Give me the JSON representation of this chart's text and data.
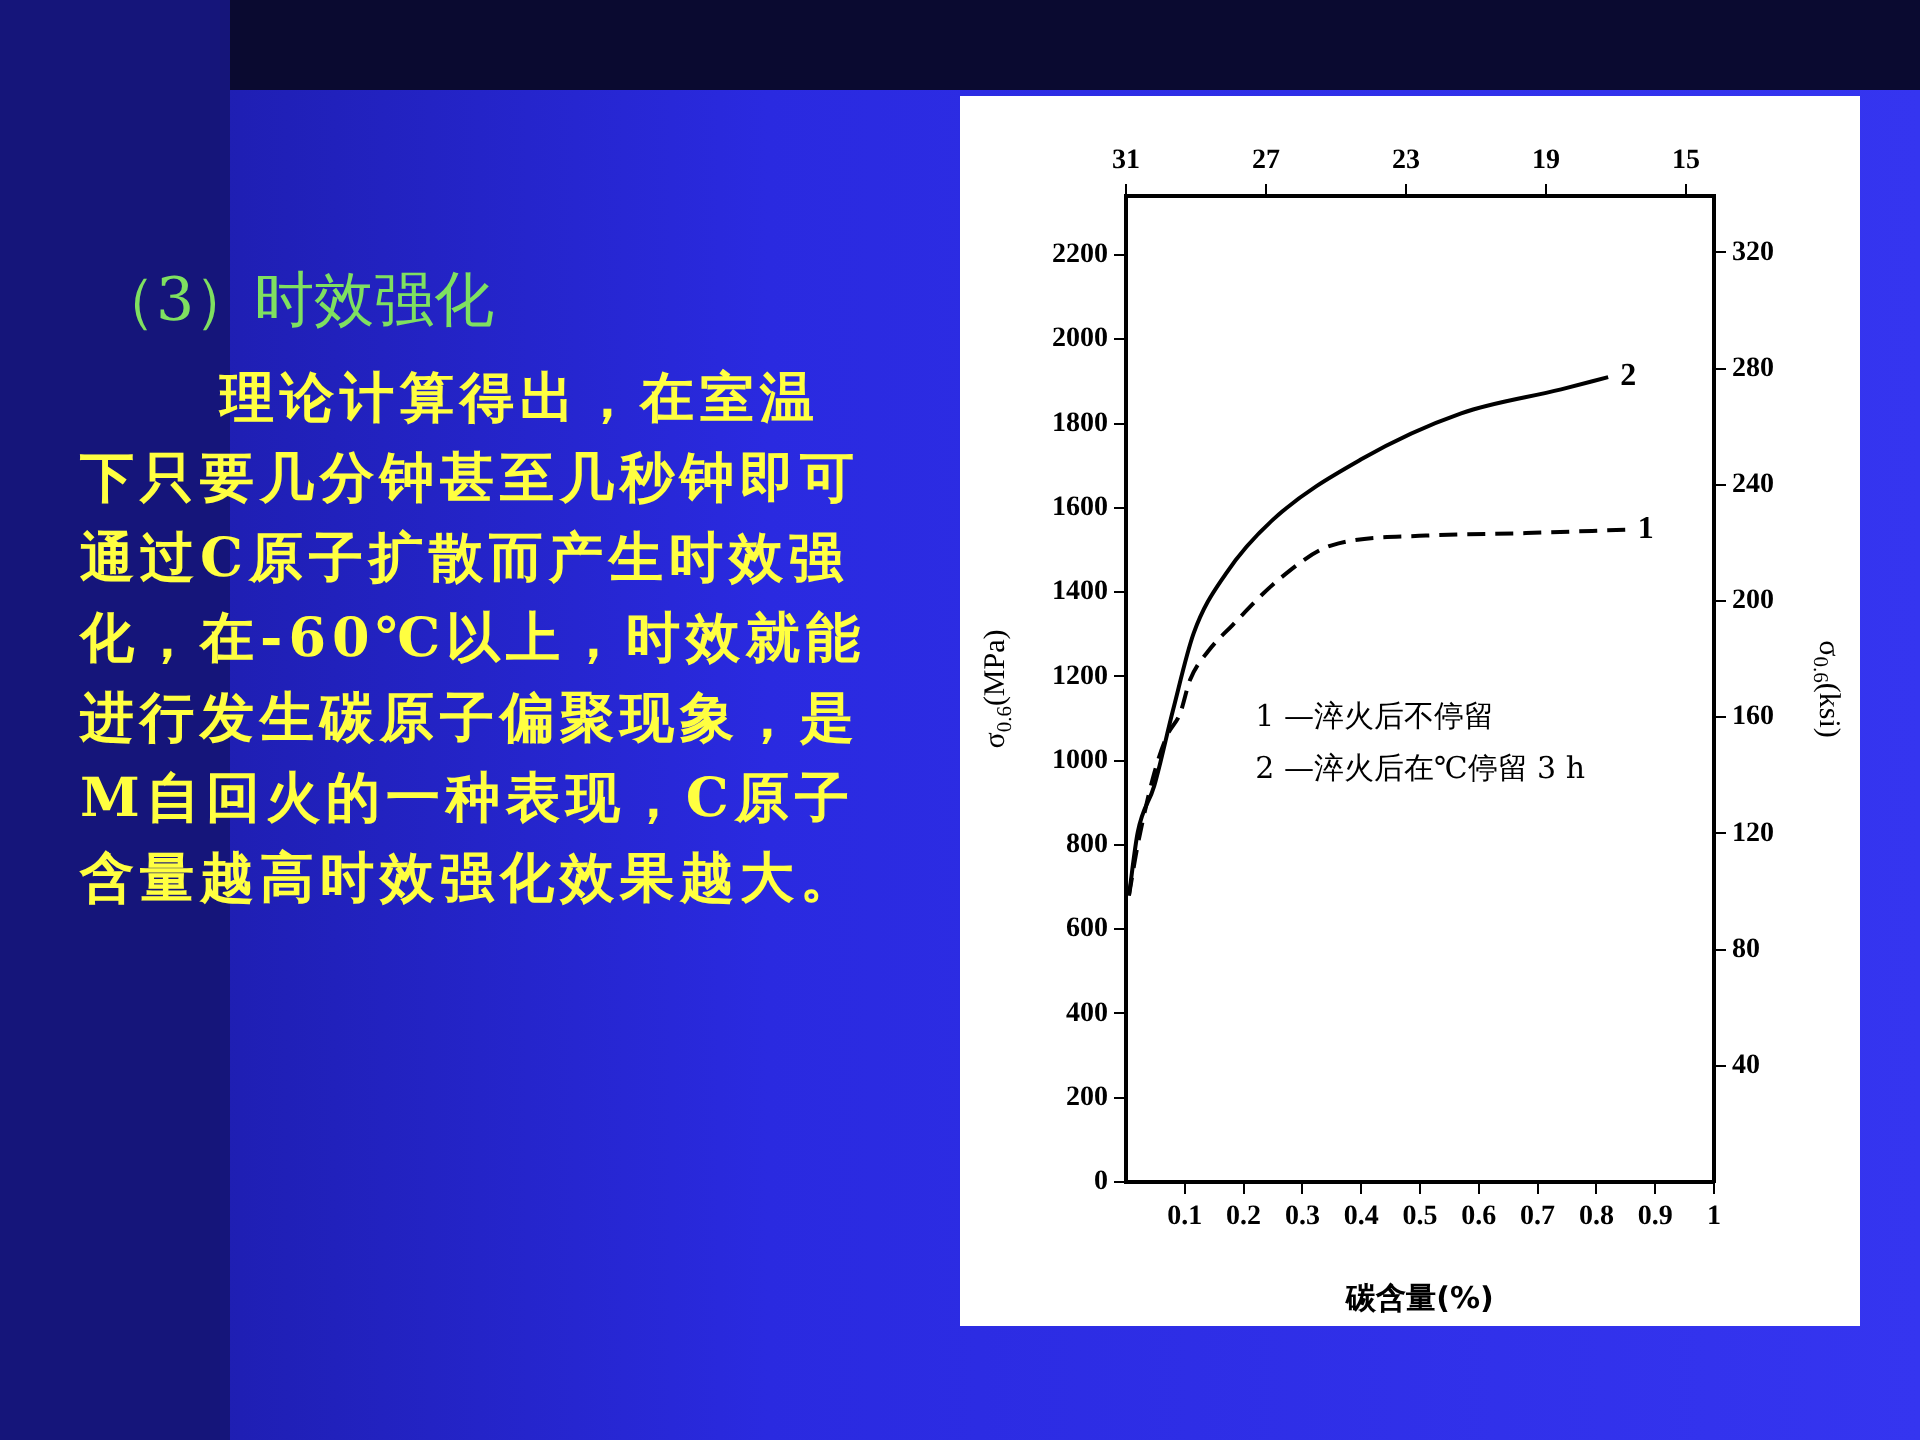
{
  "chart_data": {
    "type": "line",
    "title": "（3）时效强化",
    "annotations": [
      "理论计算得出，在室温下只要几分钟甚至几秒钟即可通过C原子扩散而产生时效强化，在-60℃以上，时效就能进行发生碳原子偏聚现象，是M自回火的一种表现，C原子含量越高时效强化效果越大。",
      "1 —淬火后不停留",
      "2 —淬火后在℃停留 3 h"
    ],
    "xlabel": "碳含量(%)",
    "ylabel": "σ$_{0.6}$(MPa)",
    "y2label": "σ$_{0.6}$(ksi)",
    "xlim": [
      0,
      1.0
    ],
    "xticks": [
      0.1,
      0.2,
      0.3,
      0.4,
      0.5,
      0.6,
      0.7,
      0.8,
      0.9,
      1.0
    ],
    "x2lim": [
      31,
      14.2
    ],
    "x2ticks": [
      31,
      27,
      23,
      19,
      15
    ],
    "ylim": [
      0,
      2340
    ],
    "yticks": [
      0,
      200,
      400,
      600,
      800,
      1000,
      1200,
      1400,
      1600,
      1800,
      2000,
      2200
    ],
    "y2lim": [
      0,
      339.4
    ],
    "y2ticks": [
      40,
      80,
      120,
      160,
      200,
      240,
      280,
      320
    ],
    "grid": false,
    "legend": false,
    "marker": "none",
    "series": [
      {
        "name": "1",
        "color": "#000000",
        "line_style": "dashed",
        "x": [
          0.005,
          0.02,
          0.048,
          0.07,
          0.092,
          0.109,
          0.14,
          0.18,
          0.26,
          0.35,
          0.51,
          0.68,
          0.85
        ],
        "values": [
          680,
          800,
          970,
          1060,
          1112,
          1192,
          1260,
          1320,
          1430,
          1511,
          1534,
          1540,
          1548
        ]
      },
      {
        "name": "2",
        "color": "#000000",
        "line_style": "solid",
        "x": [
          0.005,
          0.02,
          0.048,
          0.08,
          0.115,
          0.17,
          0.25,
          0.4,
          0.57,
          0.74,
          0.82
        ],
        "values": [
          680,
          830,
          940,
          1120,
          1302,
          1444,
          1572,
          1715,
          1824,
          1881,
          1910
        ]
      }
    ]
  }
}
